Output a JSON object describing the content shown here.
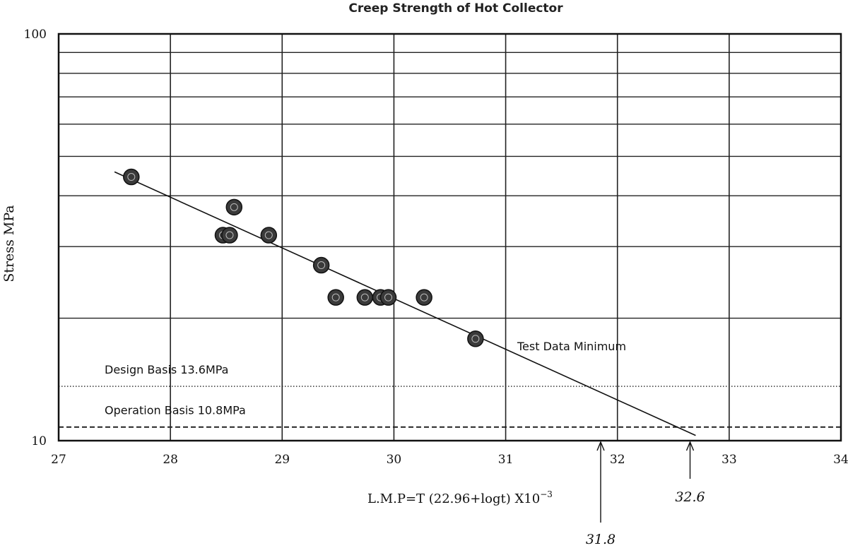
{
  "chart_data": {
    "type": "scatter",
    "title": "Creep Strength of Hot Collector",
    "xlabel": "L.M.P=T (22.96+logt) X10",
    "xlabel_exponent": "−3",
    "ylabel": "Stress MPa",
    "xlim": [
      27,
      34
    ],
    "ylim": [
      10,
      100
    ],
    "yscale": "log",
    "x_ticks": [
      "27",
      "28",
      "29",
      "30",
      "31",
      "32",
      "33",
      "34"
    ],
    "y_ticks": [
      "100",
      "10"
    ],
    "grid": true,
    "points": [
      {
        "x": 27.65,
        "y": 44.5
      },
      {
        "x": 28.47,
        "y": 32.0
      },
      {
        "x": 28.53,
        "y": 32.0
      },
      {
        "x": 28.57,
        "y": 37.5
      },
      {
        "x": 28.88,
        "y": 32.0
      },
      {
        "x": 29.35,
        "y": 27.0
      },
      {
        "x": 29.48,
        "y": 22.5
      },
      {
        "x": 29.74,
        "y": 22.5
      },
      {
        "x": 29.88,
        "y": 22.5
      },
      {
        "x": 29.95,
        "y": 22.5
      },
      {
        "x": 30.27,
        "y": 22.5
      },
      {
        "x": 30.73,
        "y": 17.8
      }
    ],
    "fit_line": {
      "label": "Test Data Minimum",
      "x": [
        27.5,
        32.7
      ],
      "y": [
        45.8,
        10.3
      ]
    },
    "reference_lines": [
      {
        "label": "Design Basis 13.6MPa",
        "y": 13.6,
        "style": "dotted"
      },
      {
        "label": "Operation Basis 10.8MPa",
        "y": 10.8,
        "style": "dashed"
      }
    ],
    "markers": [
      {
        "label": "31.8",
        "x": 31.85
      },
      {
        "label": "32.6",
        "x": 32.65
      }
    ]
  }
}
